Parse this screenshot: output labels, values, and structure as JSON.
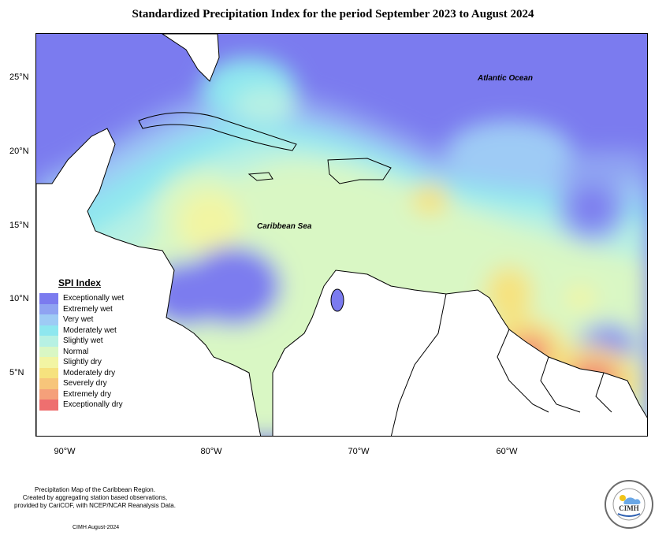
{
  "title": "Standardized Precipitation Index for the period September 2023 to August 2024",
  "labels": {
    "atlantic": "Atlantic Ocean",
    "caribbean": "Caribbean Sea"
  },
  "axes": {
    "y_ticks": [
      "25°N",
      "20°N",
      "15°N",
      "10°N",
      "5°N"
    ],
    "x_ticks": [
      "90°W",
      "80°W",
      "70°W",
      "60°W"
    ]
  },
  "legend": {
    "title": "SPI Index",
    "items": [
      {
        "label": "Exceptionally wet",
        "color": "#7b7bef"
      },
      {
        "label": "Extremely wet",
        "color": "#8fa3f2"
      },
      {
        "label": "Very wet",
        "color": "#9ecbf5"
      },
      {
        "label": "Moderately wet",
        "color": "#8ee7ef"
      },
      {
        "label": "Slightly wet",
        "color": "#b7f1e3"
      },
      {
        "label": "Normal",
        "color": "#d9f7c4"
      },
      {
        "label": "Slightly dry",
        "color": "#f2f5a3"
      },
      {
        "label": "Moderately dry",
        "color": "#f6e27e"
      },
      {
        "label": "Severely dry",
        "color": "#f7c57a"
      },
      {
        "label": "Extremely dry",
        "color": "#f5a07a"
      },
      {
        "label": "Exceptionally dry",
        "color": "#ee6f6f"
      }
    ]
  },
  "footer": {
    "line1": "Precipitation Map of the Caribbean Region.",
    "line2": "Created by aggregating station based observations,",
    "line3": "provided by CariCOF, with NCEP/NCAR Reanalysis Data.",
    "signature": "CIMH August-2024"
  },
  "logo": {
    "text": "CIMH"
  }
}
